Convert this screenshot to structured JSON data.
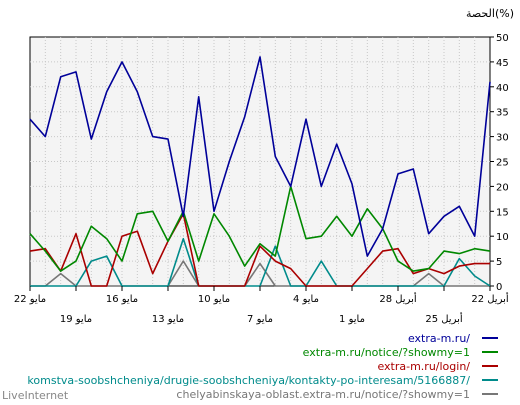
{
  "chart_data": {
    "type": "line",
    "ylabel": "الحصة(%)",
    "ylim": [
      0,
      50
    ],
    "yticks": [
      0,
      5,
      10,
      15,
      20,
      25,
      30,
      35,
      40,
      45,
      50
    ],
    "grid": true,
    "legend_position": "bottom-right",
    "x_order": "right-to-left",
    "x": [
      "22 أبريل",
      "23 أبريل",
      "24 أبريل",
      "25 أبريل",
      "26 أبريل",
      "27 أبريل",
      "28 أبريل",
      "29 أبريل",
      "30 أبريل",
      "1 مايو",
      "2 مايو",
      "3 مايو",
      "4 مايو",
      "5 مايو",
      "6 مايو",
      "7 مايو",
      "8 مايو",
      "9 مايو",
      "10 مايو",
      "11 مايو",
      "12 مايو",
      "13 مايو",
      "14 مايو",
      "15 مايو",
      "16 مايو",
      "17 مايو",
      "18 مايو",
      "19 مايو",
      "20 مايو",
      "21 مايو",
      "22 مايو"
    ],
    "xtick_labels_top": [
      {
        "index": 0,
        "label": "22 أبريل"
      },
      {
        "index": 6,
        "label": "28 أبريل"
      },
      {
        "index": 12,
        "label": "4 مايو"
      },
      {
        "index": 18,
        "label": "10 مايو"
      },
      {
        "index": 24,
        "label": "16 مايو"
      },
      {
        "index": 30,
        "label": "22 مايو"
      }
    ],
    "xtick_labels_bottom": [
      {
        "index": 3,
        "label": "25 أبريل"
      },
      {
        "index": 9,
        "label": "1 مايو"
      },
      {
        "index": 15,
        "label": "7 مايو"
      },
      {
        "index": 21,
        "label": "13 مايو"
      },
      {
        "index": 27,
        "label": "19 مايو"
      }
    ],
    "series": [
      {
        "name": "extra-m.ru/",
        "color": "#000099",
        "values": [
          41,
          10,
          16,
          14,
          10.5,
          23.5,
          22.5,
          11.5,
          6,
          20.5,
          28.5,
          20,
          33.5,
          20,
          26,
          46,
          34,
          25,
          15,
          38,
          14,
          29.5,
          30,
          39,
          45,
          39,
          29.5,
          43,
          42,
          30,
          33.5
        ]
      },
      {
        "name": "extra-m.ru/notice/?showmy=1",
        "color": "#008800",
        "values": [
          7,
          7.5,
          6.5,
          7,
          3.5,
          3,
          5,
          11.5,
          15.5,
          10,
          14,
          10,
          9.5,
          20,
          6,
          8.5,
          4,
          10,
          14.5,
          5,
          15,
          9,
          15,
          14.5,
          5,
          9.5,
          12,
          5,
          3,
          7,
          10.5
        ]
      },
      {
        "name": "extra-m.ru/login/",
        "color": "#aa0000",
        "values": [
          4.5,
          4.5,
          4,
          2.5,
          3.5,
          2.5,
          7.5,
          7,
          3.5,
          0,
          0,
          0,
          0,
          3.5,
          5,
          8,
          0,
          0,
          0,
          0,
          14.5,
          9,
          2.5,
          11,
          10,
          0,
          0,
          10.5,
          3,
          7.5,
          7
        ]
      },
      {
        "name": "komstva-soobshcheniya/drugie-soobshcheniya/kontakty-po-interesam/5166887/",
        "color": "#008b8b",
        "values": [
          0,
          2,
          5.5,
          0,
          0,
          0,
          0,
          0,
          0,
          0,
          0,
          5,
          0,
          0,
          8,
          0,
          0,
          0,
          0,
          0,
          9.5,
          0,
          0,
          0,
          0,
          6,
          5,
          0,
          0,
          0,
          0
        ]
      },
      {
        "name": "chelyabinskaya-oblast.extra-m.ru/notice/?showmy=1",
        "color": "#777777",
        "values": [
          0,
          0,
          0,
          0,
          2.5,
          0,
          0,
          0,
          0,
          0,
          0,
          0,
          0,
          0,
          0,
          4.5,
          0,
          0,
          0,
          0,
          5,
          0,
          0,
          0,
          0,
          0,
          0,
          0,
          2.5,
          0,
          0
        ]
      }
    ],
    "footer": "LiveInternet"
  }
}
